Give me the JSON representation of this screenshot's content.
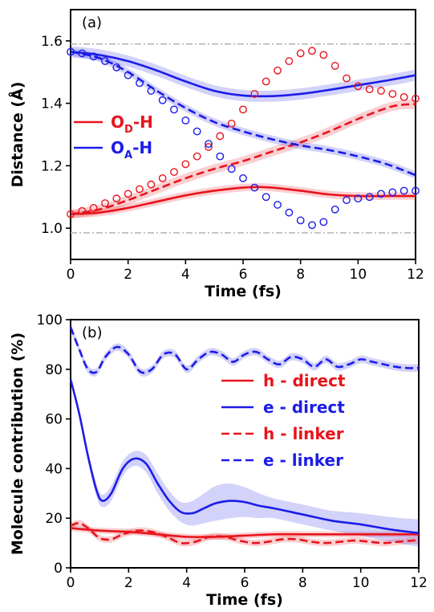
{
  "chart_data": [
    {
      "type": "line",
      "panel_tag": "(a)",
      "xlabel": "Time (fs)",
      "ylabel": "Distance (Å)",
      "xlim": [
        0,
        12
      ],
      "ylim": [
        0.9,
        1.7
      ],
      "xticks": [
        "0",
        "2",
        "4",
        "6",
        "8",
        "10",
        "12"
      ],
      "yticks": [
        "1.0",
        "1.2",
        "1.4",
        "1.6"
      ],
      "ref_lines": [
        1.59,
        0.985
      ],
      "legend": [
        {
          "main": "O",
          "sub": "D",
          "tail": "-H",
          "color": "#e8141c",
          "style": "solid"
        },
        {
          "main": "O",
          "sub": "A",
          "tail": "-H",
          "color": "#1c1ce8",
          "style": "solid"
        }
      ],
      "series": [
        {
          "name": "OD-H",
          "color": "#e8141c",
          "style": "solid",
          "band": 0.012,
          "x": [
            0,
            1,
            2,
            3,
            4,
            5,
            6,
            6.5,
            7,
            8,
            9,
            10,
            11,
            12
          ],
          "y": [
            1.045,
            1.05,
            1.065,
            1.085,
            1.105,
            1.12,
            1.13,
            1.132,
            1.13,
            1.12,
            1.108,
            1.103,
            1.103,
            1.103
          ]
        },
        {
          "name": "OA-H",
          "color": "#1c1ce8",
          "style": "solid",
          "band": 0.018,
          "x": [
            0,
            1,
            2,
            3,
            4,
            5,
            6,
            7,
            8,
            9,
            10,
            11,
            12
          ],
          "y": [
            1.565,
            1.555,
            1.535,
            1.505,
            1.47,
            1.44,
            1.425,
            1.423,
            1.43,
            1.443,
            1.458,
            1.473,
            1.49
          ]
        },
        {
          "name": "OD-H dashed",
          "color": "#e8141c",
          "style": "dashed",
          "band": 0.015,
          "x": [
            0,
            1,
            2,
            3,
            4,
            5,
            6,
            7,
            8,
            9,
            10,
            11,
            11.5,
            12
          ],
          "y": [
            1.045,
            1.06,
            1.09,
            1.125,
            1.16,
            1.19,
            1.215,
            1.245,
            1.275,
            1.31,
            1.35,
            1.385,
            1.395,
            1.397
          ]
        },
        {
          "name": "OA-H dashed",
          "color": "#1c1ce8",
          "style": "dashed",
          "band": 0.012,
          "x": [
            0,
            1,
            2,
            3,
            4,
            5,
            6,
            7,
            8,
            9,
            10,
            11,
            12
          ],
          "y": [
            1.565,
            1.545,
            1.5,
            1.44,
            1.385,
            1.34,
            1.31,
            1.285,
            1.265,
            1.25,
            1.23,
            1.205,
            1.17
          ]
        },
        {
          "name": "OD-H circles",
          "color": "#e8141c",
          "style": "circles",
          "x": [
            0,
            0.4,
            0.8,
            1.2,
            1.6,
            2.0,
            2.4,
            2.8,
            3.2,
            3.6,
            4.0,
            4.4,
            4.8,
            5.2,
            5.6,
            6.0,
            6.4,
            6.8,
            7.2,
            7.6,
            8.0,
            8.4,
            8.8,
            9.2,
            9.6,
            10.0,
            10.4,
            10.8,
            11.2,
            11.6,
            12.0
          ],
          "y": [
            1.045,
            1.055,
            1.065,
            1.08,
            1.095,
            1.11,
            1.125,
            1.14,
            1.16,
            1.18,
            1.205,
            1.23,
            1.26,
            1.295,
            1.335,
            1.38,
            1.43,
            1.47,
            1.505,
            1.535,
            1.56,
            1.568,
            1.555,
            1.52,
            1.48,
            1.455,
            1.445,
            1.44,
            1.43,
            1.42,
            1.415
          ]
        },
        {
          "name": "OA-H circles",
          "color": "#1c1ce8",
          "style": "circles",
          "x": [
            0,
            0.4,
            0.8,
            1.2,
            1.6,
            2.0,
            2.4,
            2.8,
            3.2,
            3.6,
            4.0,
            4.4,
            4.8,
            5.2,
            5.6,
            6.0,
            6.4,
            6.8,
            7.2,
            7.6,
            8.0,
            8.4,
            8.8,
            9.2,
            9.6,
            10.0,
            10.4,
            10.8,
            11.2,
            11.6,
            12.0
          ],
          "y": [
            1.565,
            1.56,
            1.55,
            1.535,
            1.515,
            1.49,
            1.465,
            1.44,
            1.41,
            1.38,
            1.345,
            1.31,
            1.27,
            1.23,
            1.19,
            1.16,
            1.13,
            1.1,
            1.075,
            1.05,
            1.025,
            1.01,
            1.02,
            1.06,
            1.09,
            1.095,
            1.1,
            1.11,
            1.115,
            1.12,
            1.12
          ]
        }
      ]
    },
    {
      "type": "line",
      "panel_tag": "(b)",
      "xlabel": "Time (fs)",
      "ylabel": "Molecule contribution (%)",
      "xlim": [
        0,
        12
      ],
      "ylim": [
        0,
        100
      ],
      "xticks": [
        "0",
        "2",
        "4",
        "6",
        "8",
        "10",
        "12"
      ],
      "yticks": [
        "0",
        "20",
        "40",
        "60",
        "80",
        "100"
      ],
      "legend": [
        {
          "label": "h - direct",
          "color": "#e8141c",
          "style": "solid"
        },
        {
          "label": "e - direct",
          "color": "#1c1ce8",
          "style": "solid"
        },
        {
          "label": "h - linker",
          "color": "#e8141c",
          "style": "dashed"
        },
        {
          "label": "e - linker",
          "color": "#1c1ce8",
          "style": "dashed"
        }
      ],
      "series": [
        {
          "name": "h - direct",
          "color": "#e8141c",
          "style": "solid",
          "band": 1.2,
          "x": [
            0,
            1,
            2,
            3,
            4,
            5,
            6,
            7,
            8,
            9,
            10,
            11,
            12
          ],
          "y": [
            16,
            15,
            14.5,
            13.5,
            12.5,
            12.5,
            13,
            13.5,
            13.5,
            13.5,
            13.5,
            13.5,
            13.5
          ]
        },
        {
          "name": "e - direct",
          "color": "#1c1ce8",
          "style": "solid",
          "x": [
            0,
            0.3,
            0.6,
            0.9,
            1.1,
            1.4,
            1.8,
            2.2,
            2.6,
            3.0,
            3.4,
            3.8,
            4.2,
            4.6,
            5.0,
            5.5,
            6.0,
            6.5,
            7.0,
            8.0,
            9.0,
            10.0,
            11.0,
            12.0
          ],
          "y": [
            76,
            62,
            45,
            31,
            27,
            30,
            40,
            44,
            42,
            34,
            27,
            22.5,
            22,
            24,
            26,
            27,
            26.5,
            25,
            24,
            21.5,
            19,
            17.5,
            15.5,
            14
          ],
          "band_width": [
            1,
            1.5,
            2,
            2.5,
            2.5,
            3,
            3,
            3,
            3.5,
            4,
            4,
            4,
            5,
            6,
            7,
            7,
            6,
            5,
            4,
            4,
            4,
            4.5,
            5,
            5.5
          ]
        },
        {
          "name": "h - linker",
          "color": "#e8141c",
          "style": "dashed",
          "band": 1.3,
          "x": [
            0,
            0.3,
            0.6,
            1.0,
            1.4,
            1.8,
            2.3,
            2.8,
            3.3,
            3.8,
            4.3,
            4.8,
            5.3,
            5.8,
            6.3,
            6.8,
            7.3,
            7.8,
            8.3,
            8.8,
            9.3,
            9.8,
            10.3,
            10.8,
            11.3,
            11.8,
            12.0
          ],
          "y": [
            17,
            18,
            16,
            12,
            11.5,
            13.5,
            15,
            14.5,
            12.5,
            10,
            10.5,
            12.5,
            12.5,
            11,
            10,
            10.5,
            11.5,
            11.5,
            10.5,
            10,
            10.5,
            11,
            10.5,
            10,
            10.5,
            11,
            11
          ]
        },
        {
          "name": "e - linker",
          "color": "#1c1ce8",
          "style": "dashed",
          "band": 1.5,
          "x": [
            0,
            0.3,
            0.6,
            0.9,
            1.2,
            1.6,
            2.0,
            2.4,
            2.8,
            3.2,
            3.6,
            4.0,
            4.4,
            4.8,
            5.2,
            5.6,
            6.0,
            6.4,
            6.8,
            7.2,
            7.6,
            8.0,
            8.4,
            8.8,
            9.2,
            9.6,
            10.0,
            10.4,
            10.8,
            11.2,
            11.6,
            12.0
          ],
          "y": [
            97,
            88,
            80,
            79,
            85,
            89,
            86,
            79,
            80,
            86,
            86,
            80,
            84,
            87,
            86,
            83,
            86,
            87,
            84,
            82,
            85,
            84,
            81,
            84,
            81,
            82,
            84,
            83,
            82,
            81,
            80.5,
            80.5
          ]
        }
      ]
    }
  ]
}
